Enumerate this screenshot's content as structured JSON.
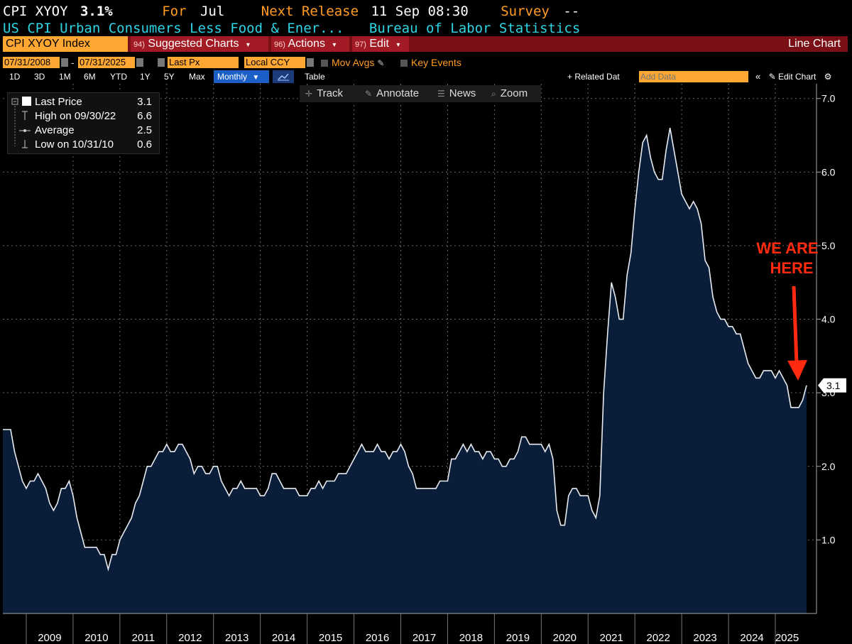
{
  "header": {
    "ticker": "CPI XYOY",
    "last_value": "3.1%",
    "for_label": "For",
    "for_value": "Jul",
    "next_release_label": "Next Release",
    "next_release_value": "11 Sep 08:30",
    "survey_label": "Survey",
    "survey_value": "--",
    "description": "US CPI Urban Consumers Less Food & Ener...",
    "source": "Bureau of Labor Statistics"
  },
  "toolbar": {
    "index": "CPI XYOY Index",
    "suggested_num": "94)",
    "suggested": "Suggested Charts",
    "actions_num": "96)",
    "actions": "Actions",
    "edit_num": "97)",
    "edit": "Edit",
    "chart_type": "Line Chart",
    "date_start": "07/31/2008",
    "date_sep": "-",
    "date_end": "07/31/2025",
    "price_field": "Last Px",
    "currency": "Local CCY",
    "mov_avgs": "Mov Avgs",
    "key_events": "Key Events",
    "periods": [
      "1D",
      "3D",
      "1M",
      "6M",
      "YTD",
      "1Y",
      "5Y",
      "Max"
    ],
    "frequency": "Monthly",
    "table": "Table",
    "related": "+ Related Dat",
    "add_data_placeholder": "Add Data",
    "edit_chart": "Edit Chart",
    "collapse": "«",
    "settings": "⚙"
  },
  "tools": {
    "track": "Track",
    "annotate": "Annotate",
    "news": "News",
    "zoom": "Zoom"
  },
  "legend": {
    "last_label": "Last Price",
    "last_value": "3.1",
    "high_label": "High on 09/30/22",
    "high_value": "6.6",
    "avg_label": "Average",
    "avg_value": "2.5",
    "low_label": "Low on 10/31/10",
    "low_value": "0.6"
  },
  "annotation": {
    "line1": "WE ARE",
    "line2": "HERE"
  },
  "colors": {
    "area_fill": "#0a1e3a",
    "line": "#e8ecf2",
    "annotation": "#ff2a10",
    "grid": "#6a6a6a"
  },
  "chart_data": {
    "type": "area",
    "title": "CPI XYOY Index",
    "x_start": "2008-07",
    "x_end": "2025-07",
    "frequency": "monthly",
    "x_labels": [
      "2009",
      "2010",
      "2011",
      "2012",
      "2013",
      "2014",
      "2015",
      "2016",
      "2017",
      "2018",
      "2019",
      "2020",
      "2021",
      "2022",
      "2023",
      "2024",
      "2025"
    ],
    "yticks": [
      1.0,
      2.0,
      3.0,
      4.0,
      5.0,
      6.0,
      7.0
    ],
    "ylim": [
      0.0,
      7.2
    ],
    "last_value_label": "3.1",
    "grid": true,
    "series": [
      {
        "values": [
          2.5,
          2.5,
          2.5,
          2.2,
          2.0,
          1.8,
          1.7,
          1.8,
          1.8,
          1.9,
          1.8,
          1.7,
          1.5,
          1.4,
          1.5,
          1.7,
          1.7,
          1.8,
          1.6,
          1.3,
          1.1,
          0.9,
          0.9,
          0.9,
          0.9,
          0.8,
          0.8,
          0.6,
          0.8,
          0.8,
          1.0,
          1.1,
          1.2,
          1.3,
          1.5,
          1.6,
          1.8,
          2.0,
          2.0,
          2.1,
          2.2,
          2.2,
          2.3,
          2.2,
          2.2,
          2.3,
          2.3,
          2.2,
          2.1,
          1.9,
          2.0,
          2.0,
          1.9,
          1.9,
          2.0,
          2.0,
          1.8,
          1.7,
          1.6,
          1.7,
          1.7,
          1.8,
          1.7,
          1.7,
          1.7,
          1.7,
          1.6,
          1.6,
          1.7,
          1.9,
          1.9,
          1.8,
          1.7,
          1.7,
          1.7,
          1.7,
          1.6,
          1.6,
          1.6,
          1.7,
          1.7,
          1.8,
          1.7,
          1.8,
          1.8,
          1.8,
          1.9,
          1.9,
          1.9,
          2.0,
          2.1,
          2.2,
          2.3,
          2.2,
          2.2,
          2.2,
          2.3,
          2.2,
          2.2,
          2.1,
          2.2,
          2.2,
          2.3,
          2.2,
          2.0,
          1.9,
          1.7,
          1.7,
          1.7,
          1.7,
          1.7,
          1.7,
          1.8,
          1.8,
          1.8,
          2.1,
          2.1,
          2.2,
          2.3,
          2.2,
          2.3,
          2.2,
          2.2,
          2.1,
          2.2,
          2.2,
          2.1,
          2.1,
          2.0,
          2.0,
          2.1,
          2.1,
          2.2,
          2.4,
          2.4,
          2.3,
          2.3,
          2.3,
          2.3,
          2.2,
          2.3,
          2.1,
          1.4,
          1.2,
          1.2,
          1.6,
          1.7,
          1.7,
          1.6,
          1.6,
          1.6,
          1.4,
          1.3,
          1.6,
          3.0,
          3.8,
          4.5,
          4.3,
          4.0,
          4.0,
          4.6,
          4.9,
          5.5,
          6.0,
          6.4,
          6.5,
          6.2,
          6.0,
          5.9,
          5.9,
          6.3,
          6.6,
          6.3,
          6.0,
          5.7,
          5.6,
          5.5,
          5.6,
          5.5,
          5.3,
          4.8,
          4.7,
          4.3,
          4.1,
          4.0,
          4.0,
          3.9,
          3.9,
          3.8,
          3.8,
          3.6,
          3.4,
          3.3,
          3.2,
          3.2,
          3.3,
          3.3,
          3.3,
          3.2,
          3.3,
          3.2,
          3.1,
          2.8,
          2.8,
          2.8,
          2.9,
          3.1
        ]
      }
    ]
  }
}
